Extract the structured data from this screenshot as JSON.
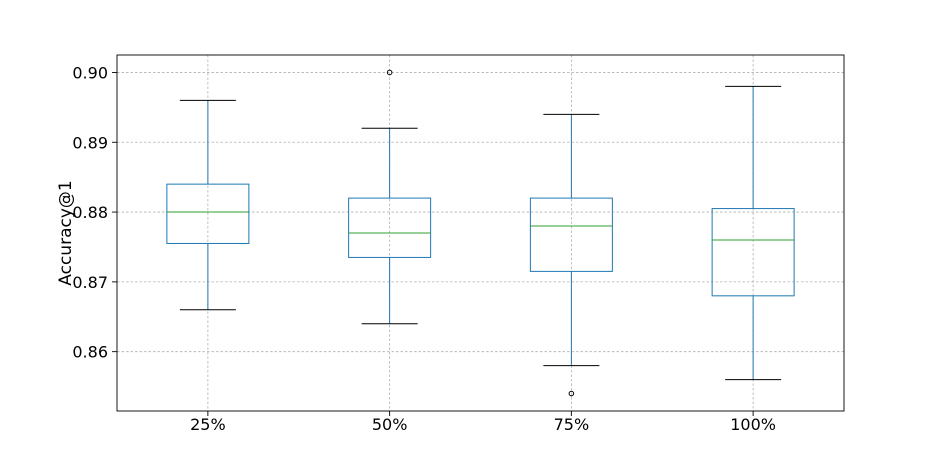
{
  "chart_data": {
    "type": "box",
    "title": "",
    "xlabel": "",
    "ylabel": "Accuracy@1",
    "categories": [
      "25%",
      "50%",
      "75%",
      "100%"
    ],
    "ylim": [
      0.8515,
      0.9025
    ],
    "yticks": [
      0.86,
      0.87,
      0.88,
      0.89,
      0.9
    ],
    "ytick_labels": [
      "0.86",
      "0.87",
      "0.88",
      "0.89",
      "0.90"
    ],
    "grid": true,
    "boxes": [
      {
        "category": "25%",
        "whisker_low": 0.866,
        "q1": 0.8755,
        "median": 0.88,
        "q3": 0.884,
        "whisker_high": 0.896,
        "outliers": []
      },
      {
        "category": "50%",
        "whisker_low": 0.864,
        "q1": 0.8735,
        "median": 0.877,
        "q3": 0.882,
        "whisker_high": 0.892,
        "outliers": [
          0.9
        ]
      },
      {
        "category": "75%",
        "whisker_low": 0.858,
        "q1": 0.8715,
        "median": 0.878,
        "q3": 0.882,
        "whisker_high": 0.894,
        "outliers": [
          0.854
        ]
      },
      {
        "category": "100%",
        "whisker_low": 0.856,
        "q1": 0.868,
        "median": 0.876,
        "q3": 0.8805,
        "whisker_high": 0.898,
        "outliers": []
      }
    ],
    "colors": {
      "box": "#1f77b4",
      "median": "#2ca02c",
      "whisker_cap": "#000000",
      "grid": "#b0b0b0"
    }
  }
}
